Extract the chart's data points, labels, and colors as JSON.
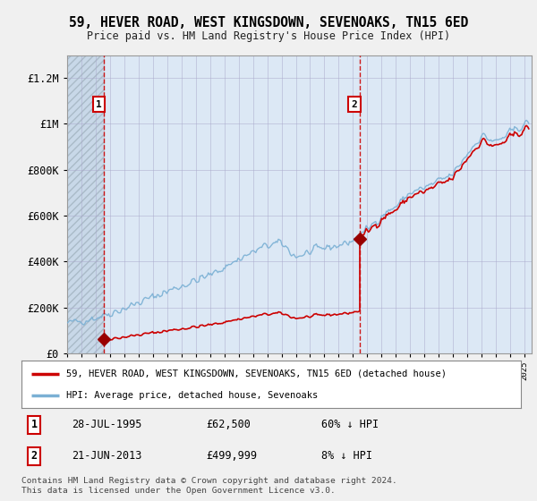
{
  "title": "59, HEVER ROAD, WEST KINGSDOWN, SEVENOAKS, TN15 6ED",
  "subtitle": "Price paid vs. HM Land Registry's House Price Index (HPI)",
  "ylim": [
    0,
    1300000
  ],
  "yticks": [
    0,
    200000,
    400000,
    600000,
    800000,
    1000000,
    1200000
  ],
  "ytick_labels": [
    "£0",
    "£200K",
    "£400K",
    "£600K",
    "£800K",
    "£1M",
    "£1.2M"
  ],
  "sale1_date": 1995.57,
  "sale1_price": 62500,
  "sale1_label": "1",
  "sale1_display": "28-JUL-1995",
  "sale1_price_display": "£62,500",
  "sale1_hpi_rel": "60% ↓ HPI",
  "sale2_date": 2013.47,
  "sale2_price": 499999,
  "sale2_label": "2",
  "sale2_display": "21-JUN-2013",
  "sale2_price_display": "£499,999",
  "sale2_hpi_rel": "8% ↓ HPI",
  "line_color_price": "#cc0000",
  "line_color_hpi": "#7ab0d4",
  "marker_color": "#990000",
  "bg_color": "#f0f0f0",
  "plot_bg": "#dce8f5",
  "legend_label_price": "59, HEVER ROAD, WEST KINGSDOWN, SEVENOAKS, TN15 6ED (detached house)",
  "legend_label_hpi": "HPI: Average price, detached house, Sevenoaks",
  "footer": "Contains HM Land Registry data © Crown copyright and database right 2024.\nThis data is licensed under the Open Government Licence v3.0.",
  "xmin": 1993.0,
  "xmax": 2025.5,
  "hpi_anchors_x": [
    1993,
    1995,
    1997,
    2000,
    2003,
    2005,
    2007,
    2008,
    2009,
    2010,
    2011,
    2012,
    2013,
    2014,
    2015,
    2016,
    2017,
    2018,
    2019,
    2020,
    2021,
    2022,
    2023,
    2024,
    2025
  ],
  "hpi_anchors_y": [
    130000,
    155000,
    195000,
    270000,
    340000,
    410000,
    470000,
    480000,
    420000,
    440000,
    460000,
    470000,
    490000,
    540000,
    600000,
    640000,
    700000,
    720000,
    750000,
    780000,
    870000,
    950000,
    920000,
    960000,
    1000000
  ],
  "hpi_noise_seed": 42,
  "hpi_noise_scale": 15000,
  "hpi_n_points": 390
}
